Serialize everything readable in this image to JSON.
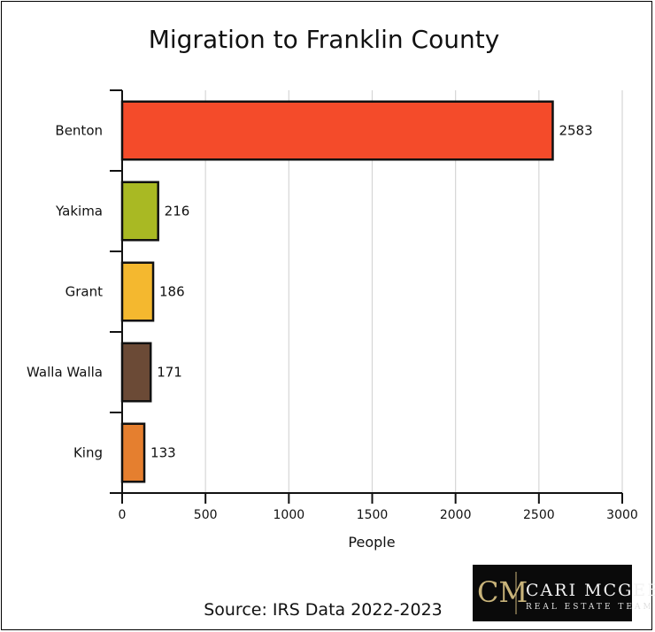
{
  "chart_data": {
    "type": "bar",
    "orientation": "horizontal",
    "title": "Migration to Franklin County",
    "xlabel": "People",
    "ylabel": "",
    "categories": [
      "Benton",
      "Yakima",
      "Grant",
      "Walla Walla",
      "King"
    ],
    "values": [
      2583,
      216,
      186,
      171,
      133
    ],
    "bar_colors": [
      "#f44b2a",
      "#a9b923",
      "#f4b82f",
      "#6b4a36",
      "#e57f2f"
    ],
    "xlim": [
      0,
      3000
    ],
    "xticks": [
      0,
      500,
      1000,
      1500,
      2000,
      2500,
      3000
    ],
    "grid": "vertical",
    "legend": "none"
  },
  "source_text": "Source: IRS Data 2022-2023",
  "logo": {
    "monogram": "CM",
    "name": "Cari McGee",
    "tagline": "Real Estate Team",
    "bg_color": "#0a0a0a",
    "accent_color": "#c9b47a"
  }
}
